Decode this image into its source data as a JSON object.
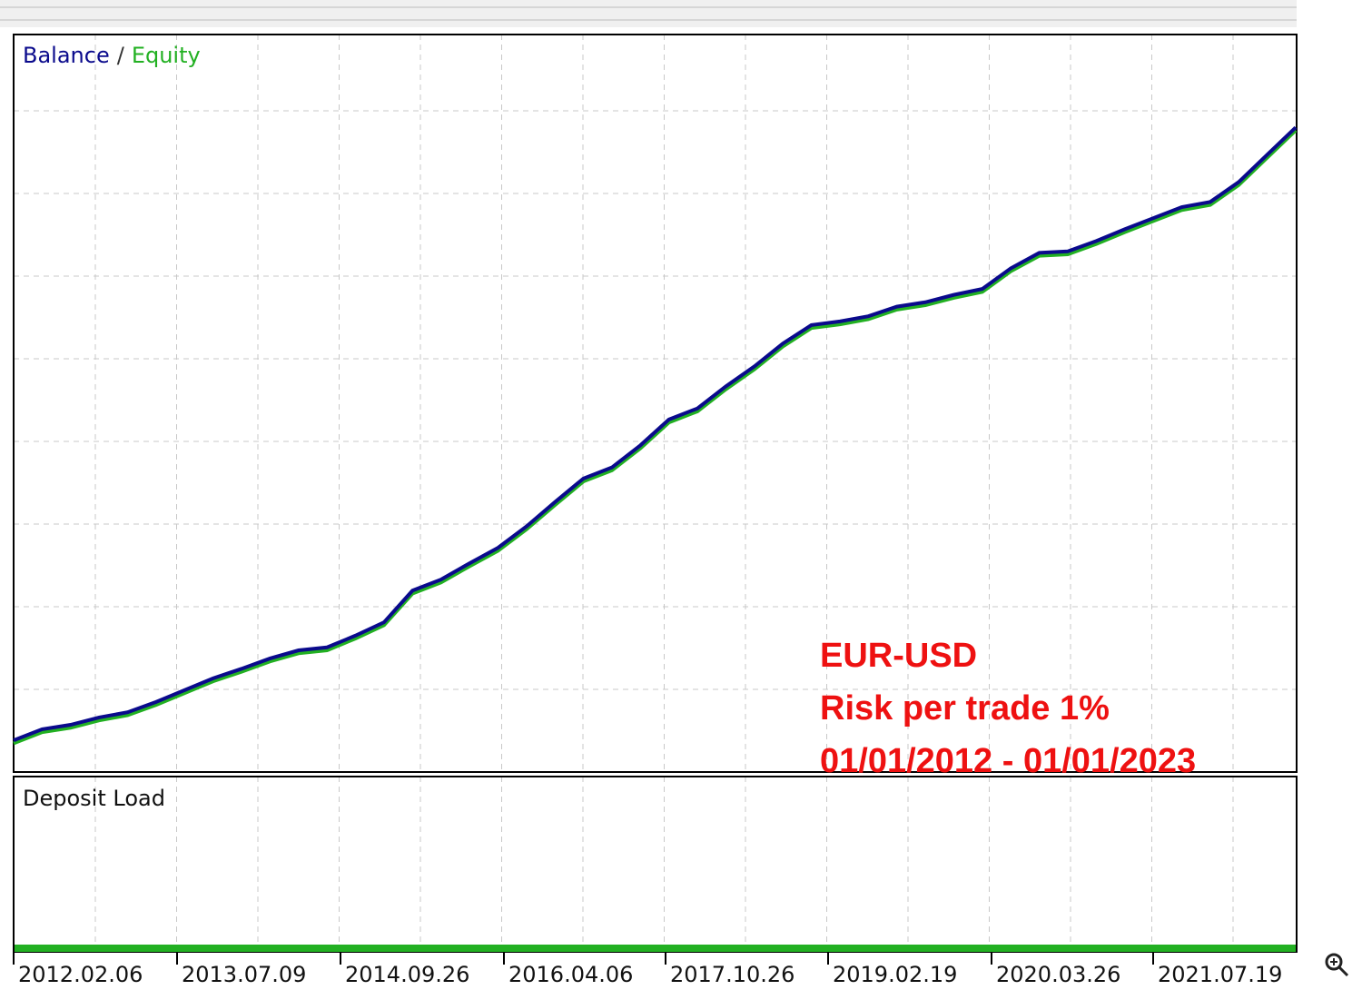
{
  "chart_data": {
    "type": "line",
    "series": [
      {
        "name": "Equity",
        "color": "#22b022",
        "values": [
          3.9,
          5.4,
          6.0,
          7.0,
          7.7,
          9.1,
          10.7,
          12.3,
          13.6,
          15.0,
          16.1,
          16.5,
          18.1,
          19.9,
          24.2,
          25.7,
          27.9,
          30.0,
          32.9,
          36.2,
          39.4,
          40.9,
          43.9,
          47.4,
          48.9,
          51.9,
          54.6,
          57.7,
          60.2,
          60.7,
          61.4,
          62.7,
          63.3,
          64.3,
          65.1,
          67.9,
          70.0,
          70.2,
          71.6,
          73.2,
          74.7,
          76.2,
          76.9,
          79.6,
          83.3,
          87.0
        ]
      },
      {
        "name": "Balance",
        "color": "#0a0a8c",
        "values": [
          4.3,
          5.8,
          6.4,
          7.4,
          8.1,
          9.5,
          11.1,
          12.7,
          14.0,
          15.4,
          16.5,
          16.9,
          18.5,
          20.3,
          24.6,
          26.1,
          28.3,
          30.4,
          33.3,
          36.6,
          39.8,
          41.3,
          44.3,
          47.8,
          49.3,
          52.3,
          55.0,
          58.1,
          60.6,
          61.1,
          61.8,
          63.1,
          63.7,
          64.7,
          65.5,
          68.3,
          70.4,
          70.6,
          72.0,
          73.6,
          75.1,
          76.6,
          77.3,
          80.0,
          83.7,
          87.4
        ]
      }
    ],
    "legend_separator": "/",
    "ylim": [
      0,
      100
    ],
    "xtick_labels": [
      "2012.02.06",
      "2013.07.09",
      "2014.09.26",
      "2016.04.06",
      "2017.10.26",
      "2019.02.19",
      "2020.03.26",
      "2021.07.19"
    ],
    "annotations": [
      "EUR-USD",
      "Risk per trade 1%",
      "01/01/2012 - 01/01/2023"
    ],
    "lower_panel_title": "Deposit Load"
  }
}
